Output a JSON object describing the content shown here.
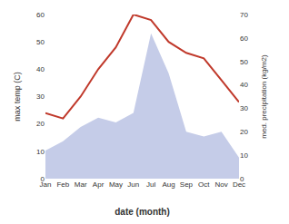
{
  "chart_data": {
    "type": "line",
    "xlabel": "date (month)",
    "ylabel": "max temp (C)",
    "y2label": "med. precipitation (kg/m2)",
    "categories": [
      "Jan",
      "Feb",
      "Mar",
      "Apr",
      "May",
      "Jun",
      "Jul",
      "Aug",
      "Sep",
      "Oct",
      "Nov",
      "Dec"
    ],
    "series": [
      {
        "type": "area",
        "color": "#c5cce8",
        "axis": "y2",
        "values": [
          12,
          16,
          22,
          26,
          24,
          28,
          62,
          45,
          20,
          18,
          20,
          9
        ]
      },
      {
        "type": "line",
        "color": "#c0392b",
        "values": [
          24,
          22,
          30,
          40,
          48,
          60,
          58,
          50,
          46,
          44,
          36,
          28
        ]
      }
    ],
    "ylim": [
      0,
      60
    ],
    "yticks": [
      0,
      10,
      20,
      30,
      40,
      50,
      60
    ],
    "y2lim": [
      0,
      70
    ],
    "y2ticks": [
      0,
      10,
      20,
      30,
      40,
      50,
      60,
      70
    ],
    "grid": false
  }
}
